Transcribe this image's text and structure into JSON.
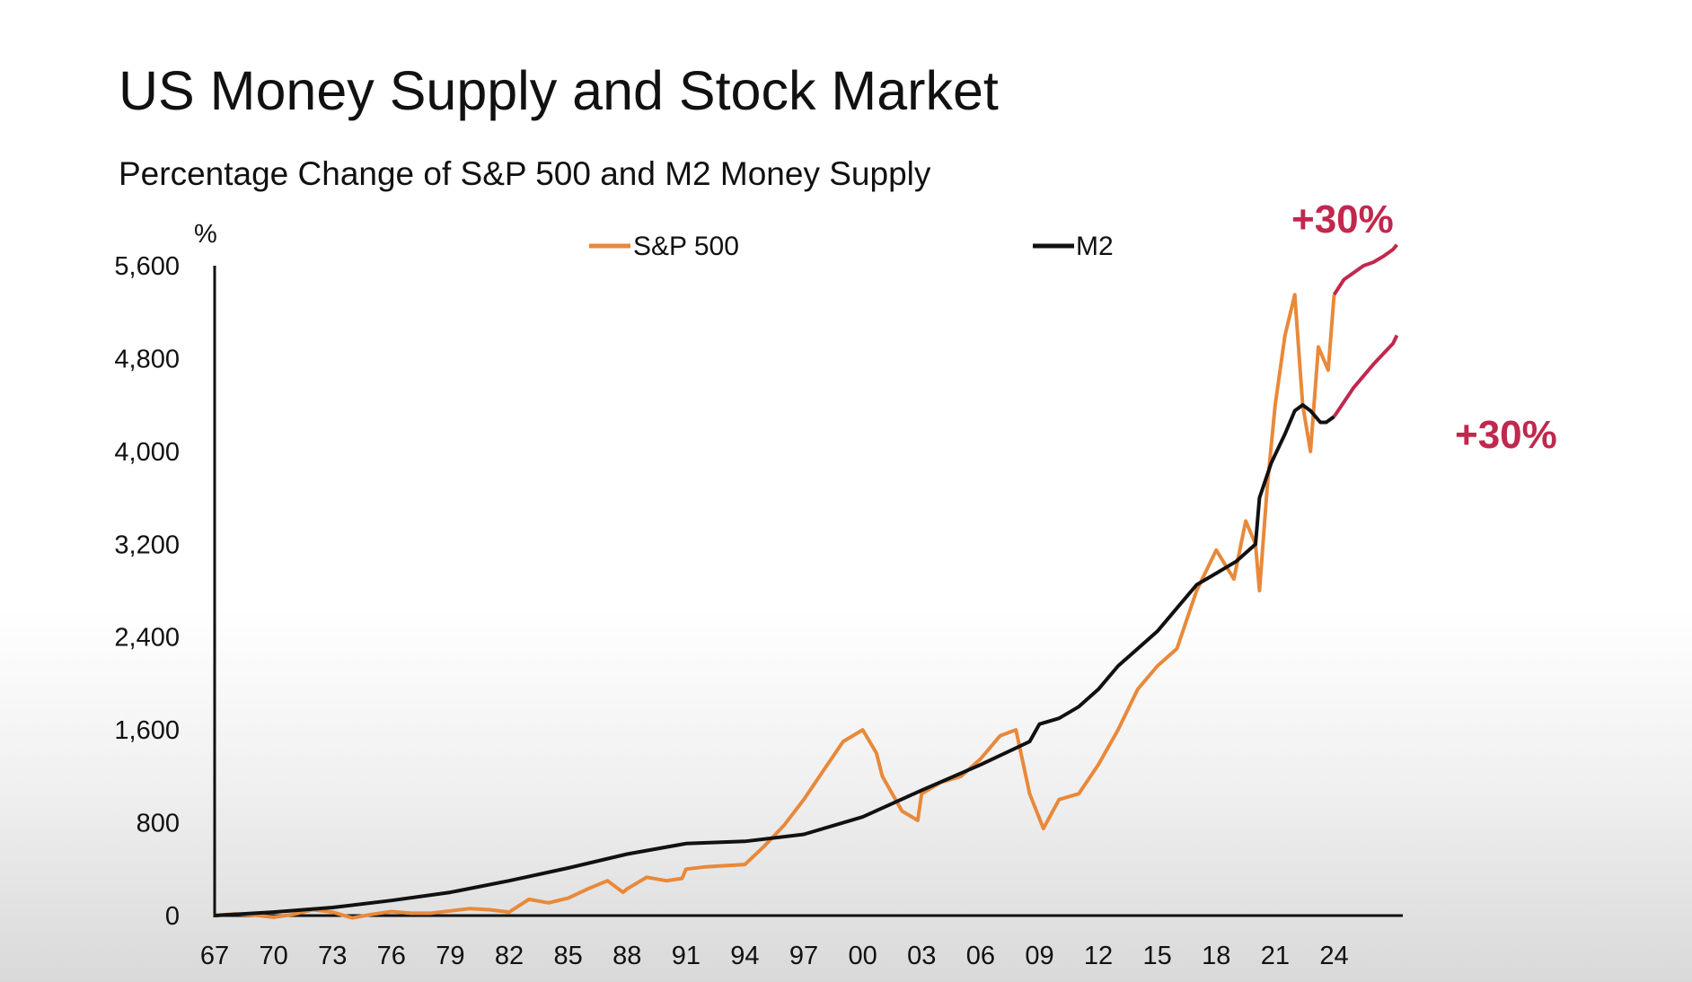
{
  "chart_data": {
    "type": "line",
    "title": "US Money Supply and Stock Market",
    "subtitle": "Percentage Change of S&P 500 and M2 Money Supply",
    "ylabel": "%",
    "xlabel": "",
    "ylim": [
      0,
      5600
    ],
    "yticks": [
      "5,600",
      "4,800",
      "4,000",
      "3,200",
      "2,400",
      "1,600",
      "800",
      "0"
    ],
    "ytick_values": [
      5600,
      4800,
      4000,
      3200,
      2400,
      1600,
      800,
      0
    ],
    "xticks": [
      "67",
      "70",
      "73",
      "76",
      "79",
      "82",
      "85",
      "88",
      "91",
      "94",
      "97",
      "00",
      "03",
      "06",
      "09",
      "12",
      "15",
      "18",
      "21",
      "24"
    ],
    "xtick_values": [
      1967,
      1970,
      1973,
      1976,
      1979,
      1982,
      1985,
      1988,
      1991,
      1994,
      1997,
      2000,
      2003,
      2006,
      2009,
      2012,
      2015,
      2018,
      2021,
      2024
    ],
    "xlim": [
      1967,
      2027.5
    ],
    "grid": false,
    "legend_position": "top-center",
    "series": [
      {
        "name": "S&P 500",
        "color": "#e8893a",
        "x": [
          1967,
          1968,
          1969,
          1970,
          1971,
          1972,
          1973,
          1974,
          1975,
          1976,
          1977,
          1978,
          1979,
          1980,
          1981,
          1982,
          1983,
          1984,
          1985,
          1986,
          1987,
          1987.8,
          1988,
          1989,
          1990,
          1990.8,
          1991,
          1992,
          1993,
          1994,
          1995,
          1996,
          1997,
          1998,
          1999,
          2000,
          2000.7,
          2001,
          2002,
          2002.8,
          2003,
          2004,
          2005,
          2006,
          2007,
          2007.8,
          2008.5,
          2009.2,
          2010,
          2011,
          2012,
          2013,
          2014,
          2015,
          2016,
          2017,
          2018,
          2018.9,
          2019.5,
          2020,
          2020.2,
          2020.6,
          2021,
          2021.5,
          2022,
          2022.4,
          2022.8,
          2023.2,
          2023.7,
          2024
        ],
        "values": [
          0,
          15,
          5,
          -15,
          10,
          50,
          30,
          -20,
          10,
          35,
          20,
          20,
          40,
          60,
          50,
          30,
          140,
          110,
          150,
          230,
          300,
          200,
          230,
          330,
          300,
          320,
          400,
          420,
          430,
          440,
          600,
          780,
          1000,
          1250,
          1500,
          1600,
          1400,
          1200,
          900,
          820,
          1050,
          1150,
          1200,
          1350,
          1550,
          1600,
          1050,
          750,
          1000,
          1050,
          1300,
          1600,
          1950,
          2150,
          2300,
          2800,
          3150,
          2900,
          3400,
          3200,
          2800,
          3700,
          4400,
          5000,
          5350,
          4400,
          4000,
          4900,
          4700,
          5350
        ]
      },
      {
        "name": "M2",
        "color": "#111111",
        "x": [
          1967,
          1970,
          1973,
          1976,
          1979,
          1982,
          1985,
          1988,
          1991,
          1994,
          1997,
          2000,
          2003,
          2006,
          2008.5,
          2009,
          2010,
          2011,
          2012,
          2013,
          2015,
          2016,
          2017,
          2018,
          2019,
          2020,
          2020.2,
          2020.8,
          2021.5,
          2022,
          2022.4,
          2022.8,
          2023.3,
          2023.6,
          2024
        ],
        "values": [
          0,
          30,
          70,
          130,
          200,
          300,
          410,
          530,
          620,
          640,
          700,
          850,
          1080,
          1300,
          1500,
          1650,
          1700,
          1800,
          1950,
          2150,
          2450,
          2650,
          2850,
          2950,
          3050,
          3200,
          3600,
          3900,
          4150,
          4350,
          4400,
          4350,
          4250,
          4250,
          4300
        ]
      }
    ],
    "projections": [
      {
        "color": "#c0284e",
        "x": [
          2024,
          2024.5,
          2025,
          2025.5,
          2026,
          2026.5,
          2027,
          2027.2
        ],
        "values": [
          5350,
          5480,
          5540,
          5600,
          5630,
          5680,
          5740,
          5780
        ]
      },
      {
        "color": "#c0284e",
        "x": [
          2024,
          2025,
          2026,
          2027,
          2027.2
        ],
        "values": [
          4300,
          4550,
          4750,
          4930,
          5000
        ]
      }
    ],
    "annotations": [
      {
        "text": "+30%",
        "color": "#c0284e",
        "anchor": "upper"
      },
      {
        "text": "+30%",
        "color": "#c0284e",
        "anchor": "lower"
      }
    ]
  }
}
